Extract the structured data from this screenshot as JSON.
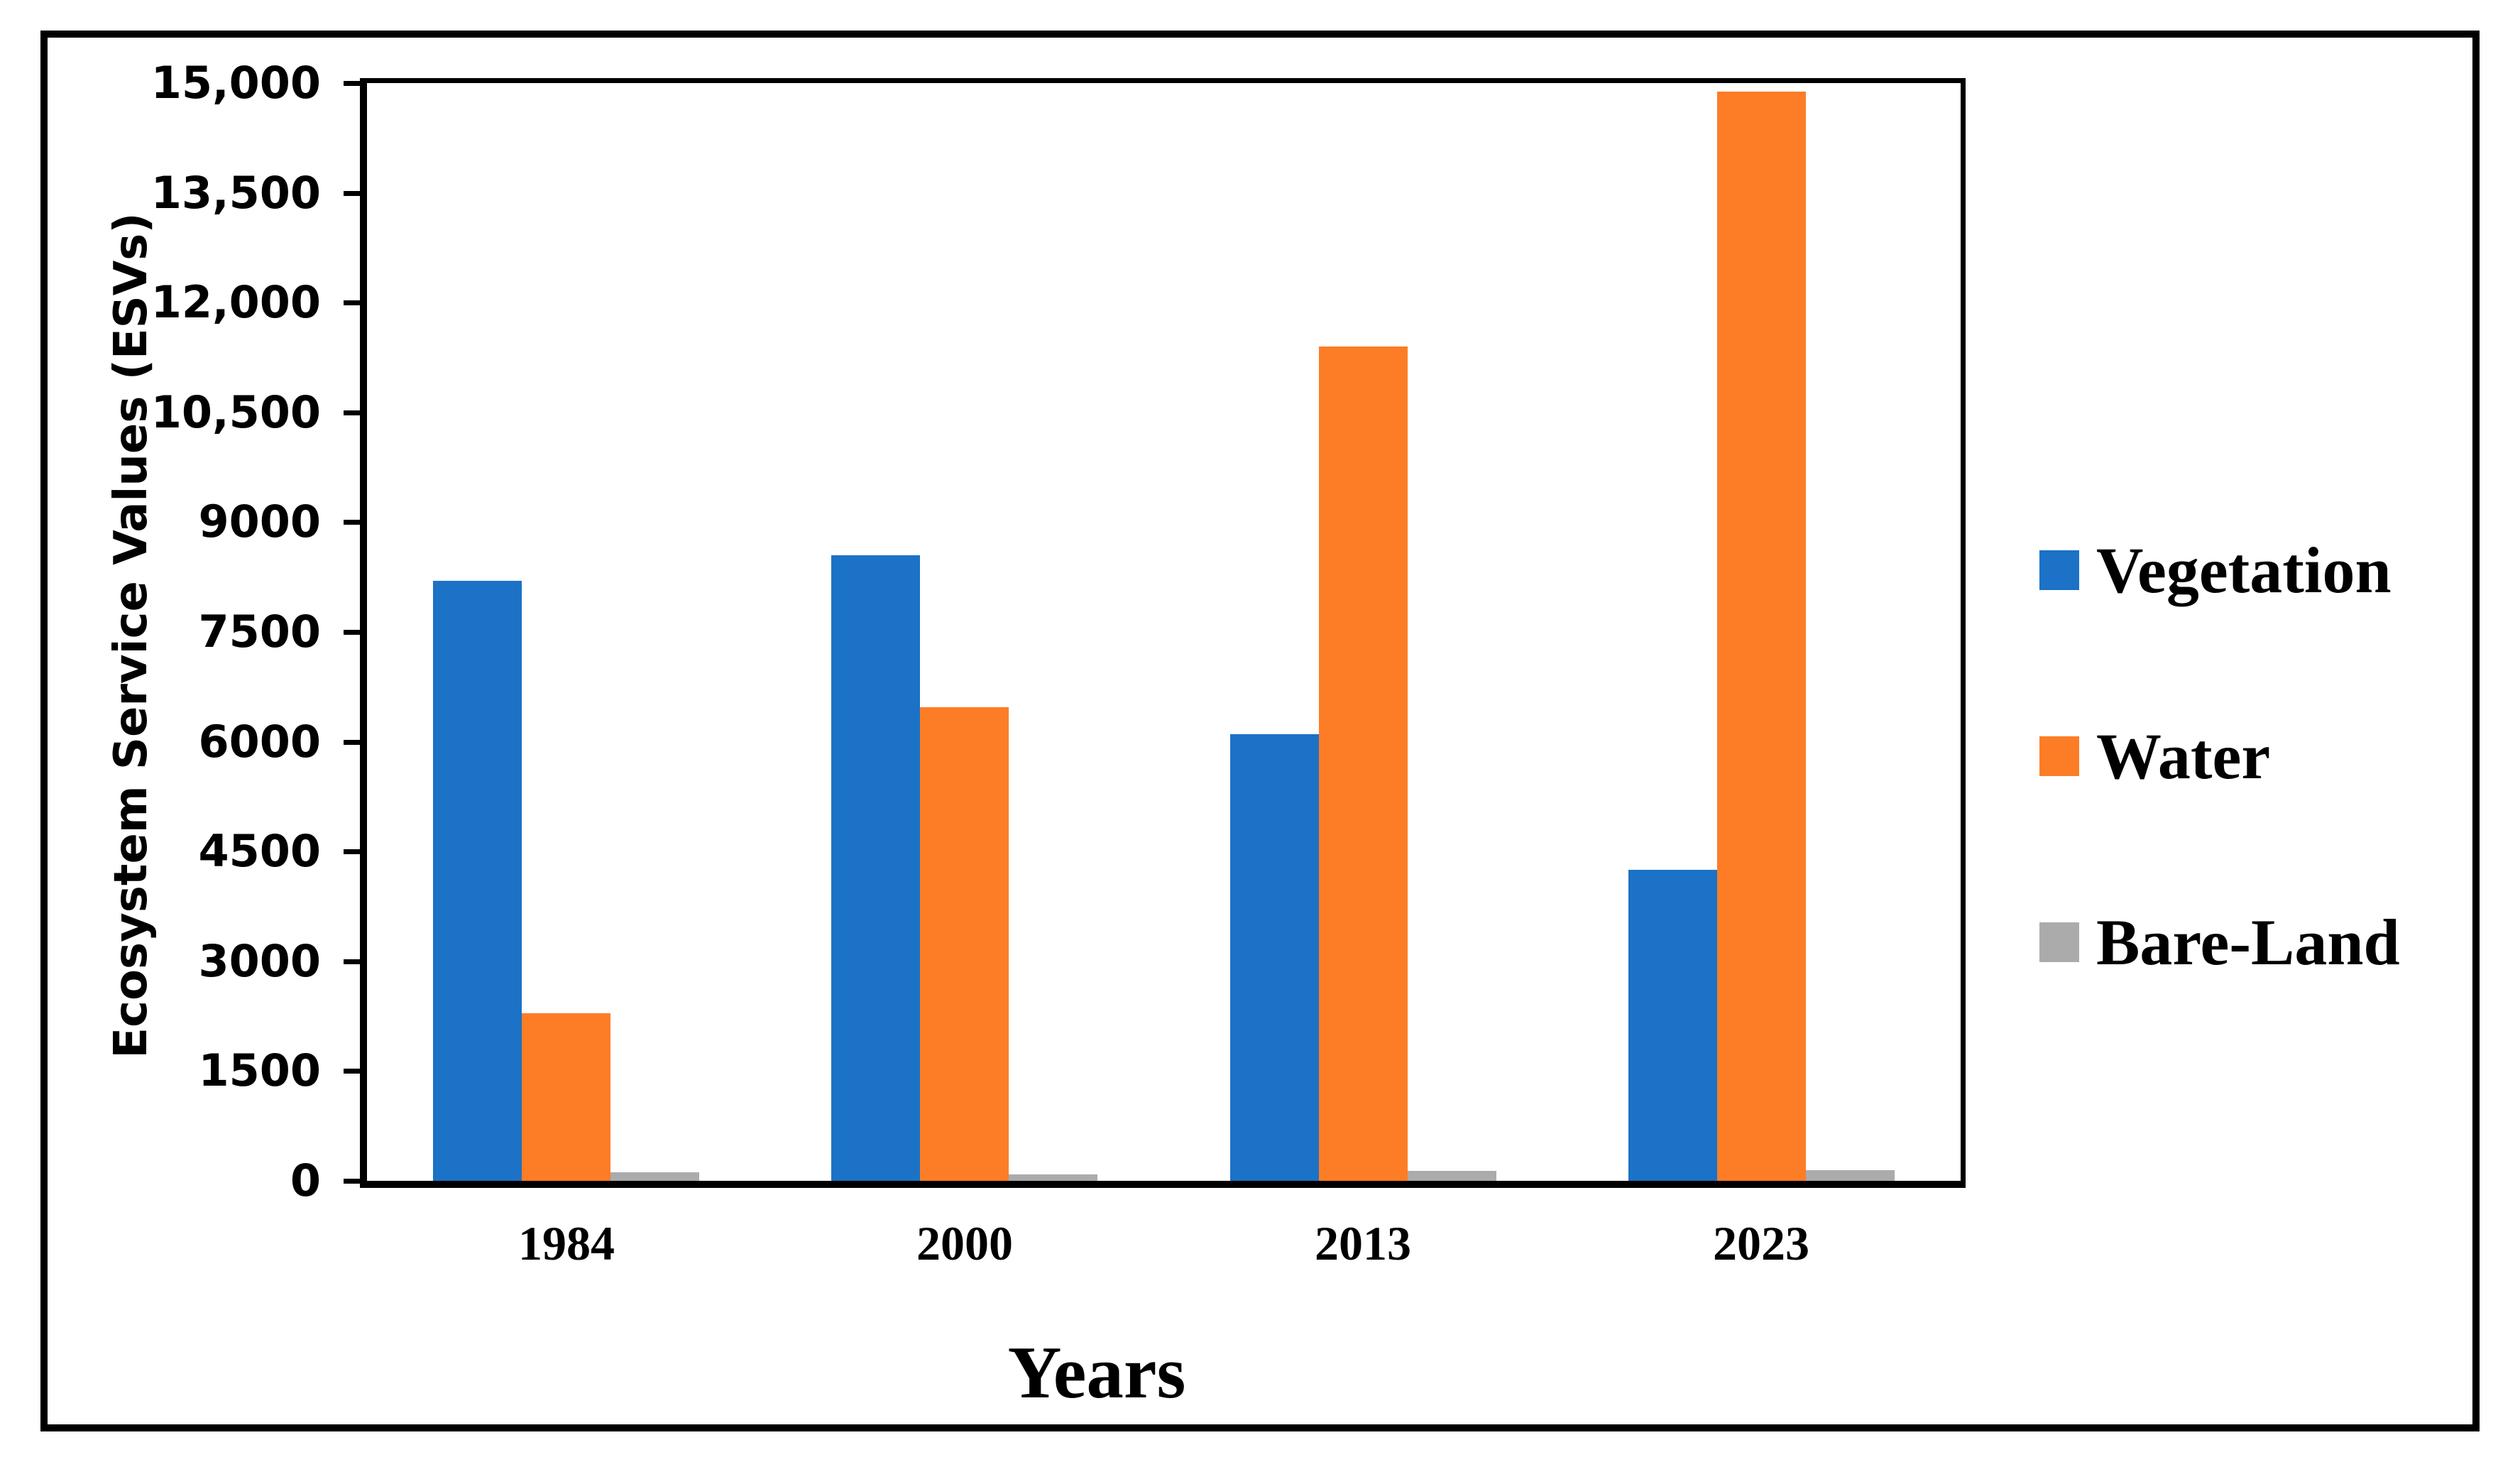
{
  "chart_data": {
    "type": "bar",
    "title": "",
    "categories": [
      "1984",
      "2000",
      "2013",
      "2023"
    ],
    "series": [
      {
        "name": "Vegetation",
        "color": "#1B72C6",
        "values": [
          8200,
          8550,
          6100,
          4250
        ]
      },
      {
        "name": "Water",
        "color": "#FC7D26",
        "values": [
          2290,
          6470,
          11400,
          14880
        ]
      },
      {
        "name": "Bare-Land",
        "color": "#ABABAB",
        "values": [
          120,
          90,
          140,
          150
        ]
      }
    ],
    "xlabel": "Years",
    "ylabel": "Ecosystem Service Values (ESVs)",
    "ylim": [
      0,
      15000
    ],
    "ytick_step": 1500,
    "ytick_labels_bottom_to_top": [
      "0",
      "1500",
      "3000",
      "4500",
      "6000",
      "7500",
      "9000",
      "10,500",
      "12,000",
      "13,500",
      "15,000"
    ],
    "grid": false,
    "legend_position": "right",
    "plot_border": "black-frame",
    "bar_colors_note": {
      "vegetation_blue": "#1B72C6",
      "water_orange": "#FC7D26",
      "bareland_gray": "#ABABAB",
      "axis_black": "#000000",
      "background": "#ffffff"
    }
  }
}
